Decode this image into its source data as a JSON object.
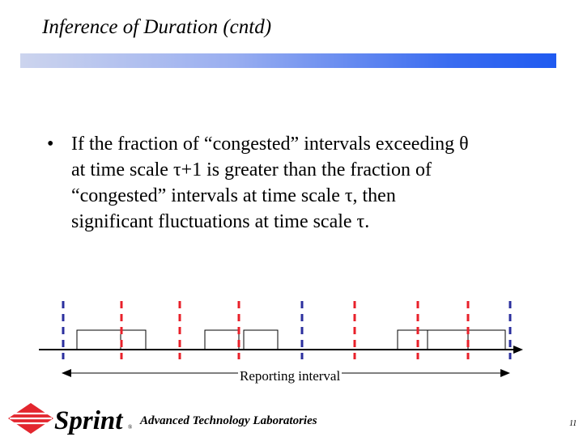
{
  "slide": {
    "title": "Inference of Duration (cntd)",
    "bullet_symbol": "•",
    "bullet_lines": [
      "If the fraction of “congested” intervals exceeding θ",
      "at time scale τ+1 is greater than the fraction of",
      "“congested” intervals at time scale τ, then",
      "significant fluctuations at time scale τ."
    ]
  },
  "diagram": {
    "reporting_label": "Reporting interval",
    "colors": {
      "dashed_blue": "#2b2f9e",
      "dashed_red": "#e8202a",
      "axis": "#000000"
    }
  },
  "footer": {
    "logo_text": "Sprint",
    "logo_mark": "®",
    "lab_name": "Advanced Technology Laboratories",
    "page_number": "11"
  }
}
